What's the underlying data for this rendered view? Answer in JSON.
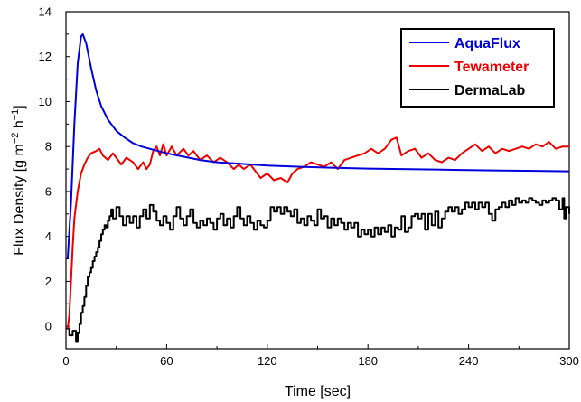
{
  "chart_data": {
    "type": "line",
    "xlabel": "Time [sec]",
    "ylabel_parts": {
      "main": "Flux Density [g m",
      "exp1": "−2",
      "mid": " h",
      "exp2": "−1",
      "close": "]"
    },
    "xlim": [
      0,
      300
    ],
    "ylim": [
      -1,
      14
    ],
    "x_ticks": [
      0,
      60,
      120,
      180,
      240,
      300
    ],
    "y_ticks": [
      0,
      2,
      4,
      6,
      8,
      10,
      12,
      14
    ],
    "grid": false,
    "legend_position": "top-right",
    "series": [
      {
        "name": "AquaFlux",
        "color": "#0000dd",
        "step": false,
        "points": [
          [
            1,
            3.0
          ],
          [
            3,
            5.5
          ],
          [
            5,
            9.0
          ],
          [
            7,
            11.7
          ],
          [
            9,
            12.9
          ],
          [
            10,
            13.0
          ],
          [
            12,
            12.6
          ],
          [
            15,
            11.5
          ],
          [
            18,
            10.5
          ],
          [
            21,
            9.8
          ],
          [
            25,
            9.2
          ],
          [
            30,
            8.7
          ],
          [
            35,
            8.4
          ],
          [
            40,
            8.15
          ],
          [
            45,
            8.0
          ],
          [
            50,
            7.9
          ],
          [
            55,
            7.8
          ],
          [
            60,
            7.7
          ],
          [
            70,
            7.55
          ],
          [
            80,
            7.4
          ],
          [
            90,
            7.3
          ],
          [
            100,
            7.25
          ],
          [
            120,
            7.15
          ],
          [
            140,
            7.1
          ],
          [
            160,
            7.05
          ],
          [
            180,
            7.02
          ],
          [
            200,
            7.0
          ],
          [
            220,
            6.98
          ],
          [
            240,
            6.95
          ],
          [
            260,
            6.93
          ],
          [
            280,
            6.92
          ],
          [
            300,
            6.9
          ]
        ]
      },
      {
        "name": "Tewameter",
        "color": "#ee0000",
        "step": false,
        "points": [
          [
            1,
            -0.1
          ],
          [
            2,
            0.5
          ],
          [
            3,
            2.0
          ],
          [
            4,
            3.5
          ],
          [
            5,
            4.8
          ],
          [
            7,
            6.0
          ],
          [
            9,
            6.8
          ],
          [
            11,
            7.2
          ],
          [
            13,
            7.5
          ],
          [
            15,
            7.7
          ],
          [
            18,
            7.8
          ],
          [
            20,
            7.9
          ],
          [
            22,
            7.6
          ],
          [
            25,
            7.4
          ],
          [
            28,
            7.7
          ],
          [
            30,
            7.5
          ],
          [
            33,
            7.2
          ],
          [
            36,
            7.5
          ],
          [
            40,
            7.3
          ],
          [
            43,
            7.0
          ],
          [
            46,
            7.3
          ],
          [
            48,
            7.0
          ],
          [
            50,
            7.2
          ],
          [
            52,
            7.8
          ],
          [
            54,
            8.0
          ],
          [
            56,
            7.6
          ],
          [
            58,
            8.1
          ],
          [
            60,
            7.6
          ],
          [
            63,
            8.0
          ],
          [
            66,
            7.6
          ],
          [
            70,
            7.9
          ],
          [
            73,
            7.6
          ],
          [
            76,
            7.8
          ],
          [
            80,
            7.4
          ],
          [
            84,
            7.6
          ],
          [
            88,
            7.3
          ],
          [
            92,
            7.5
          ],
          [
            96,
            7.3
          ],
          [
            100,
            7.0
          ],
          [
            103,
            7.2
          ],
          [
            106,
            7.0
          ],
          [
            110,
            7.2
          ],
          [
            113,
            6.9
          ],
          [
            116,
            6.6
          ],
          [
            120,
            6.8
          ],
          [
            124,
            6.5
          ],
          [
            128,
            6.6
          ],
          [
            132,
            6.4
          ],
          [
            135,
            6.8
          ],
          [
            138,
            7.0
          ],
          [
            142,
            7.1
          ],
          [
            146,
            7.3
          ],
          [
            150,
            7.2
          ],
          [
            154,
            7.1
          ],
          [
            158,
            7.3
          ],
          [
            162,
            7.0
          ],
          [
            166,
            7.4
          ],
          [
            170,
            7.5
          ],
          [
            174,
            7.6
          ],
          [
            178,
            7.7
          ],
          [
            182,
            7.9
          ],
          [
            186,
            7.7
          ],
          [
            190,
            7.9
          ],
          [
            194,
            8.3
          ],
          [
            197,
            8.4
          ],
          [
            200,
            7.6
          ],
          [
            204,
            7.8
          ],
          [
            208,
            7.9
          ],
          [
            212,
            7.5
          ],
          [
            216,
            7.7
          ],
          [
            220,
            7.4
          ],
          [
            224,
            7.3
          ],
          [
            228,
            7.5
          ],
          [
            232,
            7.4
          ],
          [
            236,
            7.7
          ],
          [
            240,
            7.9
          ],
          [
            244,
            8.1
          ],
          [
            248,
            7.8
          ],
          [
            252,
            8.0
          ],
          [
            256,
            7.7
          ],
          [
            260,
            7.9
          ],
          [
            264,
            7.8
          ],
          [
            268,
            7.9
          ],
          [
            272,
            8.0
          ],
          [
            276,
            7.9
          ],
          [
            280,
            8.1
          ],
          [
            284,
            8.0
          ],
          [
            288,
            8.2
          ],
          [
            292,
            7.9
          ],
          [
            296,
            8.0
          ],
          [
            300,
            8.0
          ]
        ]
      },
      {
        "name": "DermaLab",
        "color": "#000000",
        "step": true,
        "points": [
          [
            0,
            -0.1
          ],
          [
            2,
            -0.4
          ],
          [
            4,
            -0.2
          ],
          [
            6,
            -0.7
          ],
          [
            7,
            -0.3
          ],
          [
            8,
            0.1
          ],
          [
            9,
            0.6
          ],
          [
            10,
            0.9
          ],
          [
            11,
            1.3
          ],
          [
            12,
            1.8
          ],
          [
            13,
            2.2
          ],
          [
            14,
            2.4
          ],
          [
            15,
            2.6
          ],
          [
            16,
            2.9
          ],
          [
            17,
            3.1
          ],
          [
            18,
            3.3
          ],
          [
            19,
            3.5
          ],
          [
            20,
            3.8
          ],
          [
            21,
            4.1
          ],
          [
            22,
            4.3
          ],
          [
            23,
            4.5
          ],
          [
            24,
            4.4
          ],
          [
            25,
            4.7
          ],
          [
            26,
            4.9
          ],
          [
            27,
            5.2
          ],
          [
            28,
            4.8
          ],
          [
            30,
            5.3
          ],
          [
            32,
            4.9
          ],
          [
            34,
            4.5
          ],
          [
            36,
            4.9
          ],
          [
            38,
            4.6
          ],
          [
            40,
            4.9
          ],
          [
            42,
            4.4
          ],
          [
            44,
            4.9
          ],
          [
            46,
            5.2
          ],
          [
            48,
            4.8
          ],
          [
            50,
            5.4
          ],
          [
            52,
            5.1
          ],
          [
            54,
            4.7
          ],
          [
            56,
            4.5
          ],
          [
            58,
            4.9
          ],
          [
            60,
            4.6
          ],
          [
            62,
            4.3
          ],
          [
            64,
            4.9
          ],
          [
            66,
            5.3
          ],
          [
            68,
            4.8
          ],
          [
            70,
            4.5
          ],
          [
            72,
            4.9
          ],
          [
            74,
            5.2
          ],
          [
            76,
            4.6
          ],
          [
            78,
            4.4
          ],
          [
            80,
            4.7
          ],
          [
            82,
            4.5
          ],
          [
            84,
            4.8
          ],
          [
            86,
            4.6
          ],
          [
            88,
            4.3
          ],
          [
            90,
            4.8
          ],
          [
            92,
            5.0
          ],
          [
            94,
            4.5
          ],
          [
            96,
            4.8
          ],
          [
            98,
            4.4
          ],
          [
            100,
            4.9
          ],
          [
            102,
            5.3
          ],
          [
            104,
            4.8
          ],
          [
            106,
            4.5
          ],
          [
            108,
            4.9
          ],
          [
            110,
            4.6
          ],
          [
            112,
            4.3
          ],
          [
            114,
            4.7
          ],
          [
            116,
            4.5
          ],
          [
            118,
            4.4
          ],
          [
            120,
            4.7
          ],
          [
            122,
            5.3
          ],
          [
            124,
            5.1
          ],
          [
            126,
            5.3
          ],
          [
            128,
            5.0
          ],
          [
            130,
            5.3
          ],
          [
            132,
            5.1
          ],
          [
            134,
            4.9
          ],
          [
            136,
            5.2
          ],
          [
            138,
            4.6
          ],
          [
            140,
            4.8
          ],
          [
            142,
            4.5
          ],
          [
            144,
            4.9
          ],
          [
            146,
            4.7
          ],
          [
            148,
            4.5
          ],
          [
            150,
            5.2
          ],
          [
            152,
            4.8
          ],
          [
            154,
            4.9
          ],
          [
            156,
            4.4
          ],
          [
            158,
            4.8
          ],
          [
            160,
            4.5
          ],
          [
            162,
            4.8
          ],
          [
            164,
            4.6
          ],
          [
            166,
            4.3
          ],
          [
            168,
            4.6
          ],
          [
            170,
            4.4
          ],
          [
            172,
            4.6
          ],
          [
            174,
            4.0
          ],
          [
            176,
            4.3
          ],
          [
            178,
            4.1
          ],
          [
            180,
            4.3
          ],
          [
            182,
            4.0
          ],
          [
            184,
            4.4
          ],
          [
            186,
            4.1
          ],
          [
            188,
            4.4
          ],
          [
            190,
            4.2
          ],
          [
            192,
            4.5
          ],
          [
            194,
            4.0
          ],
          [
            196,
            4.4
          ],
          [
            198,
            4.3
          ],
          [
            200,
            4.9
          ],
          [
            202,
            4.2
          ],
          [
            204,
            4.4
          ],
          [
            206,
            4.9
          ],
          [
            208,
            5.0
          ],
          [
            210,
            4.8
          ],
          [
            212,
            5.0
          ],
          [
            214,
            4.3
          ],
          [
            216,
            5.0
          ],
          [
            218,
            4.5
          ],
          [
            220,
            5.1
          ],
          [
            222,
            4.4
          ],
          [
            224,
            4.8
          ],
          [
            226,
            5.1
          ],
          [
            228,
            5.3
          ],
          [
            230,
            5.1
          ],
          [
            232,
            5.3
          ],
          [
            234,
            5.0
          ],
          [
            236,
            5.2
          ],
          [
            238,
            5.5
          ],
          [
            240,
            5.3
          ],
          [
            242,
            5.5
          ],
          [
            244,
            5.2
          ],
          [
            246,
            5.5
          ],
          [
            248,
            5.3
          ],
          [
            250,
            5.5
          ],
          [
            252,
            5.0
          ],
          [
            254,
            4.7
          ],
          [
            256,
            5.2
          ],
          [
            258,
            5.3
          ],
          [
            260,
            5.5
          ],
          [
            262,
            5.3
          ],
          [
            264,
            5.6
          ],
          [
            266,
            5.4
          ],
          [
            268,
            5.7
          ],
          [
            270,
            5.5
          ],
          [
            272,
            5.6
          ],
          [
            274,
            5.5
          ],
          [
            276,
            5.7
          ],
          [
            278,
            5.6
          ],
          [
            280,
            5.5
          ],
          [
            282,
            5.4
          ],
          [
            284,
            5.6
          ],
          [
            286,
            5.5
          ],
          [
            288,
            5.6
          ],
          [
            290,
            5.7
          ],
          [
            292,
            5.6
          ],
          [
            294,
            5.2
          ],
          [
            296,
            5.7
          ],
          [
            297,
            4.8
          ],
          [
            298,
            5.3
          ],
          [
            300,
            5.0
          ]
        ]
      }
    ]
  }
}
